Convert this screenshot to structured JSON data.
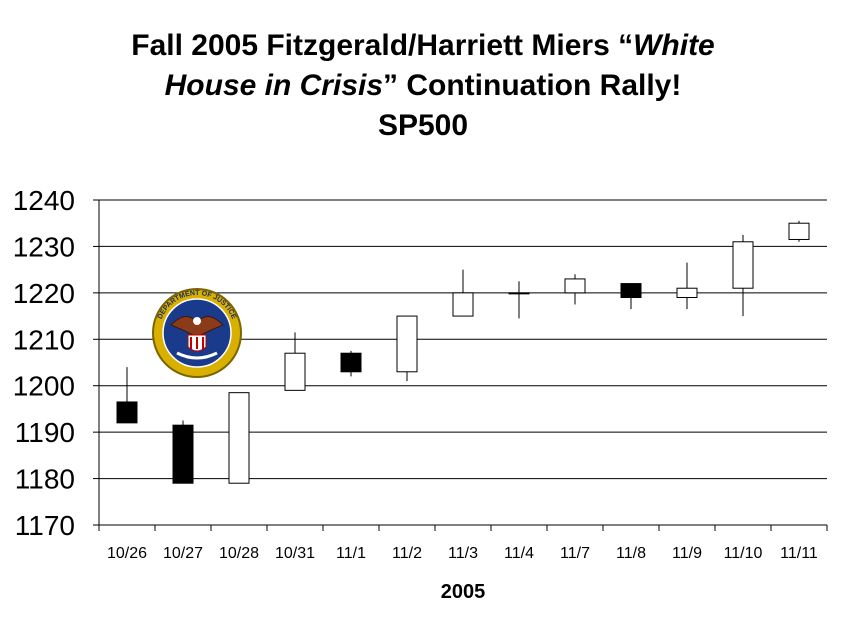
{
  "title": {
    "line1_a": "Fall 2005 Fitzgerald/Harriett Miers “",
    "line1_b": "White",
    "line2_a": "House in Crisis",
    "line2_b": "” Continuation Rally!",
    "line3": "SP500"
  },
  "chart_data": {
    "type": "candlestick",
    "title": "Fall 2005 Fitzgerald/Harriett Miers “White House in Crisis” Continuation Rally! SP500",
    "xlabel": "2005",
    "ylabel": "",
    "ylim": [
      1170,
      1240
    ],
    "yticks": [
      "1170",
      "1180",
      "1190",
      "1200",
      "1210",
      "1220",
      "1230",
      "1240"
    ],
    "grid": true,
    "categories": [
      "10/26",
      "10/27",
      "10/28",
      "10/31",
      "11/1",
      "11/2",
      "11/3",
      "11/4",
      "11/7",
      "11/8",
      "11/9",
      "11/10",
      "11/11"
    ],
    "open": [
      1196.5,
      1191.5,
      1179.0,
      1199.0,
      1207.0,
      1203.0,
      1215.0,
      1220.0,
      1220.0,
      1222.0,
      1219.0,
      1221.0,
      1231.5
    ],
    "high": [
      1204.0,
      1192.5,
      1198.5,
      1211.5,
      1207.5,
      1215.0,
      1225.0,
      1222.5,
      1224.0,
      1222.0,
      1226.5,
      1232.5,
      1235.5
    ],
    "low": [
      1192.0,
      1179.0,
      1179.0,
      1199.0,
      1202.0,
      1201.0,
      1215.0,
      1214.5,
      1217.5,
      1216.5,
      1216.5,
      1215.0,
      1231.0
    ],
    "close": [
      1192.0,
      1179.0,
      1198.5,
      1207.0,
      1203.0,
      1215.0,
      1220.0,
      1220.0,
      1223.0,
      1219.0,
      1221.0,
      1231.0,
      1235.0
    ],
    "up_color": "#ffffff",
    "down_color": "#000000"
  },
  "seal": {
    "text": "DEPARTMENT OF JUSTICE",
    "ring_color": "#d9b000",
    "field_color": "#1a3a8c",
    "eagle_color": "#8b3a1a"
  }
}
